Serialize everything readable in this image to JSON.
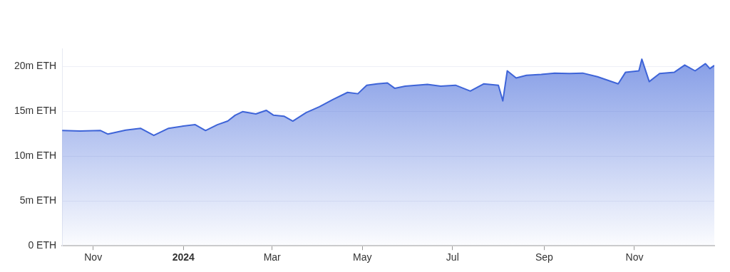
{
  "chart_data": {
    "type": "area",
    "x": [
      "2023-10-11",
      "2023-10-23",
      "2023-11-06",
      "2023-11-11",
      "2023-11-23",
      "2023-12-03",
      "2023-12-12",
      "2023-12-22",
      "2024-01-01",
      "2024-01-09",
      "2024-01-16",
      "2024-01-24",
      "2024-01-31",
      "2024-02-05",
      "2024-02-10",
      "2024-02-19",
      "2024-02-26",
      "2024-03-02",
      "2024-03-09",
      "2024-03-15",
      "2024-03-24",
      "2024-04-02",
      "2024-04-11",
      "2024-04-21",
      "2024-04-28",
      "2024-05-04",
      "2024-05-11",
      "2024-05-18",
      "2024-05-23",
      "2024-05-30",
      "2024-06-14",
      "2024-06-23",
      "2024-07-03",
      "2024-07-13",
      "2024-07-22",
      "2024-08-01",
      "2024-08-04",
      "2024-08-07",
      "2024-08-13",
      "2024-08-20",
      "2024-08-30",
      "2024-09-08",
      "2024-09-18",
      "2024-09-27",
      "2024-10-07",
      "2024-10-21",
      "2024-10-26",
      "2024-11-04",
      "2024-11-06",
      "2024-11-11",
      "2024-11-18",
      "2024-11-28",
      "2024-12-05",
      "2024-12-12",
      "2024-12-19",
      "2024-12-22",
      "2024-12-25"
    ],
    "series": [
      {
        "color": "#3e64d8",
        "values": [
          12.85,
          12.8,
          12.85,
          12.45,
          12.9,
          13.1,
          12.3,
          13.1,
          13.35,
          13.5,
          12.85,
          13.5,
          13.9,
          14.55,
          14.95,
          14.7,
          15.1,
          14.55,
          14.45,
          13.9,
          14.85,
          15.5,
          16.3,
          17.1,
          16.95,
          17.9,
          18.05,
          18.15,
          17.55,
          17.8,
          18.0,
          17.8,
          17.9,
          17.25,
          18.05,
          17.9,
          16.15,
          19.5,
          18.7,
          19.0,
          19.1,
          19.25,
          19.2,
          19.25,
          18.85,
          18.05,
          19.35,
          19.5,
          20.8,
          18.3,
          19.2,
          19.35,
          20.15,
          19.5,
          20.3,
          19.75,
          20.1
        ]
      }
    ],
    "xlim": [
      "2023-10-11",
      "2024-12-25"
    ],
    "xticks": [
      {
        "value": "2023-11-01",
        "label": "Nov"
      },
      {
        "value": "2024-01-01",
        "label": "2024"
      },
      {
        "value": "2024-03-01",
        "label": "Mar"
      },
      {
        "value": "2024-05-01",
        "label": "May"
      },
      {
        "value": "2024-07-01",
        "label": "Jul"
      },
      {
        "value": "2024-09-01",
        "label": "Sep"
      },
      {
        "value": "2024-11-01",
        "label": "Nov"
      }
    ],
    "ylim": [
      0,
      22
    ],
    "yticks": [
      {
        "value": 0,
        "label": "0 ETH"
      },
      {
        "value": 5,
        "label": "5m ETH"
      },
      {
        "value": 10,
        "label": "10m ETH"
      },
      {
        "value": 15,
        "label": "15m ETH"
      },
      {
        "value": 20,
        "label": "20m ETH"
      }
    ],
    "grid": "y",
    "marker": "none",
    "line_style": "solid"
  }
}
